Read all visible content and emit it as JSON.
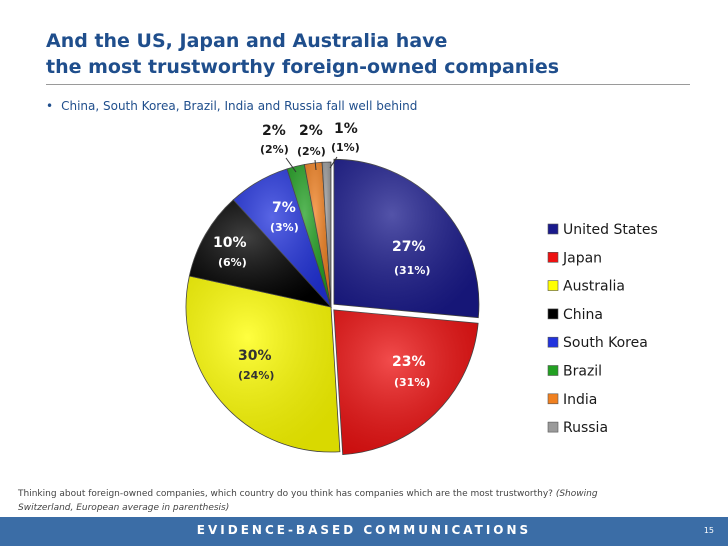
{
  "slide": {
    "title_line1": "And the US, Japan and Australia have",
    "title_line2": "the most trustworthy foreign-owned companies",
    "bullet": "China, South Korea, Brazil, India and Russia fall well behind",
    "question": "Thinking about foreign-owned companies, which country do you think has companies which are the most trustworthy?",
    "question_note": "(Showing Switzerland, European average in parenthesis)",
    "footer": "EVIDENCE-BASED COMMUNICATIONS",
    "page_number": "15"
  },
  "chart_data": {
    "type": "pie",
    "series_name": "",
    "legend_position": "right",
    "slices": [
      {
        "label": "United States",
        "value": 27,
        "value_label": "27%",
        "paren_label": "(31%)",
        "color": "#1a1a8c"
      },
      {
        "label": "Japan",
        "value": 23,
        "value_label": "23%",
        "paren_label": "(31%)",
        "color": "#ee1111"
      },
      {
        "label": "Australia",
        "value": 30,
        "value_label": "30%",
        "paren_label": "(24%)",
        "color": "#ffff00"
      },
      {
        "label": "China",
        "value": 10,
        "value_label": "10%",
        "paren_label": "(6%)",
        "color": "#000000"
      },
      {
        "label": "South Korea",
        "value": 7,
        "value_label": "7%",
        "paren_label": "(3%)",
        "color": "#2233dd"
      },
      {
        "label": "Brazil",
        "value": 2,
        "value_label": "2%",
        "paren_label": "(2%)",
        "color": "#22a022"
      },
      {
        "label": "India",
        "value": 2,
        "value_label": "2%",
        "paren_label": "(2%)",
        "color": "#f08020"
      },
      {
        "label": "Russia",
        "value": 1,
        "value_label": "1%",
        "paren_label": "(1%)",
        "color": "#9a9a9a"
      }
    ]
  }
}
